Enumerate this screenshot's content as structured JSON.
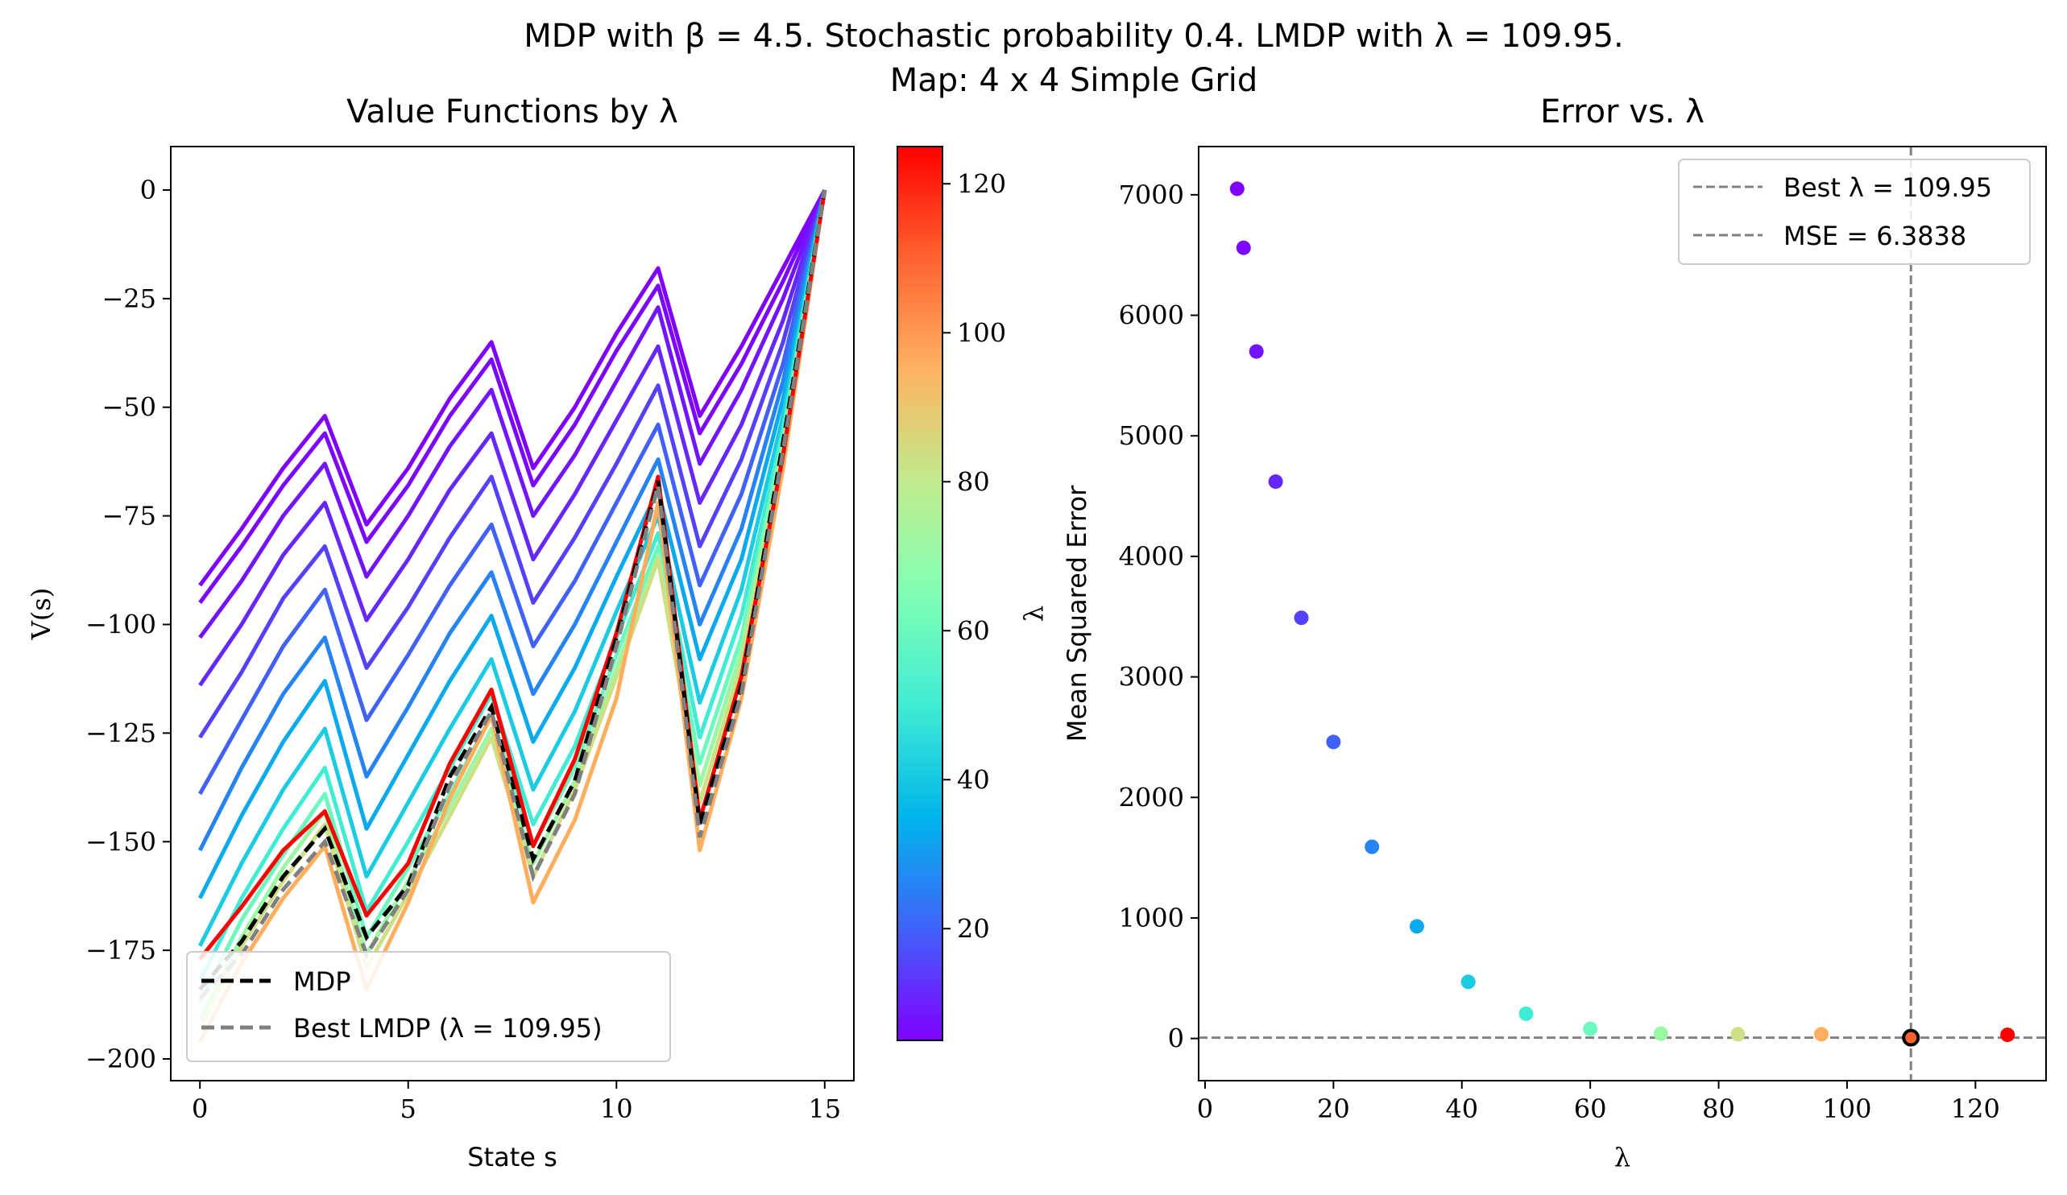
{
  "figure": {
    "suptitle_line1": "MDP with β = 4.5. Stochastic probability 0.4. LMDP with λ = 109.95.",
    "suptitle_line2": "Map: 4 x 4 Simple Grid"
  },
  "chart_data": [
    {
      "type": "line",
      "title": "Value Functions by λ",
      "xlabel": "State s",
      "ylabel": "V(s)",
      "xlim": [
        -0.7,
        15.7
      ],
      "ylim": [
        -205,
        10
      ],
      "xticks": [
        0,
        5,
        10,
        15
      ],
      "yticks": [
        0,
        -25,
        -50,
        -75,
        -100,
        -125,
        -150,
        -175,
        -200
      ],
      "x": [
        0,
        1,
        2,
        3,
        4,
        5,
        6,
        7,
        8,
        9,
        10,
        11,
        12,
        13,
        14,
        15
      ],
      "lambda_curves": [
        {
          "lambda": 5,
          "values": [
            -91,
            -78,
            -64,
            -52,
            -77,
            -64,
            -48,
            -35,
            -64,
            -50,
            -33,
            -18,
            -52,
            -36,
            -18,
            0
          ]
        },
        {
          "lambda": 6,
          "values": [
            -95,
            -82,
            -68,
            -56,
            -81,
            -68,
            -52,
            -39,
            -68,
            -54,
            -37,
            -22,
            -56,
            -40,
            -21,
            0
          ]
        },
        {
          "lambda": 8,
          "values": [
            -103,
            -90,
            -75,
            -63,
            -89,
            -75,
            -59,
            -46,
            -75,
            -61,
            -44,
            -27,
            -63,
            -46,
            -25,
            0
          ]
        },
        {
          "lambda": 11,
          "values": [
            -114,
            -100,
            -84,
            -72,
            -99,
            -85,
            -69,
            -56,
            -85,
            -70,
            -53,
            -36,
            -72,
            -54,
            -30,
            0
          ]
        },
        {
          "lambda": 15,
          "values": [
            -126,
            -111,
            -94,
            -82,
            -110,
            -96,
            -80,
            -66,
            -95,
            -80,
            -63,
            -45,
            -82,
            -62,
            -35,
            0
          ]
        },
        {
          "lambda": 20,
          "values": [
            -139,
            -122,
            -105,
            -92,
            -122,
            -107,
            -91,
            -77,
            -105,
            -90,
            -72,
            -54,
            -91,
            -70,
            -40,
            0
          ]
        },
        {
          "lambda": 26,
          "values": [
            -152,
            -133,
            -116,
            -103,
            -135,
            -119,
            -102,
            -88,
            -116,
            -100,
            -81,
            -62,
            -100,
            -78,
            -44,
            0
          ]
        },
        {
          "lambda": 33,
          "values": [
            -163,
            -144,
            -127,
            -113,
            -147,
            -130,
            -113,
            -98,
            -127,
            -110,
            -89,
            -69,
            -108,
            -85,
            -48,
            0
          ]
        },
        {
          "lambda": 41,
          "values": [
            -174,
            -155,
            -138,
            -124,
            -158,
            -141,
            -124,
            -108,
            -138,
            -120,
            -97,
            -75,
            -118,
            -92,
            -52,
            0
          ]
        },
        {
          "lambda": 50,
          "values": [
            -182,
            -163,
            -147,
            -133,
            -166,
            -150,
            -133,
            -116,
            -146,
            -128,
            -103,
            -79,
            -126,
            -98,
            -55,
            0
          ]
        },
        {
          "lambda": 60,
          "values": [
            -187,
            -168,
            -153,
            -139,
            -172,
            -156,
            -139,
            -121,
            -151,
            -133,
            -107,
            -82,
            -132,
            -103,
            -57,
            0
          ]
        },
        {
          "lambda": 71,
          "values": [
            -191,
            -172,
            -156,
            -143,
            -176,
            -159,
            -142,
            -124,
            -155,
            -136,
            -110,
            -84,
            -137,
            -106,
            -59,
            0
          ]
        },
        {
          "lambda": 83,
          "values": [
            -193,
            -174,
            -159,
            -146,
            -179,
            -162,
            -144,
            -126,
            -158,
            -138,
            -112,
            -85,
            -141,
            -109,
            -60,
            0
          ]
        },
        {
          "lambda": 96,
          "values": [
            -196,
            -178,
            -163,
            -151,
            -184,
            -164,
            -140,
            -121,
            -164,
            -145,
            -117,
            -72,
            -152,
            -117,
            -64,
            0
          ]
        },
        {
          "lambda": 125,
          "values": [
            -177,
            -165,
            -152,
            -143,
            -167,
            -155,
            -132,
            -115,
            -151,
            -131,
            -102,
            -66,
            -145,
            -112,
            -61,
            0
          ]
        }
      ],
      "series": [
        {
          "name": "MDP",
          "values": [
            -184,
            -173,
            -158,
            -147,
            -172,
            -160,
            -135,
            -119,
            -154,
            -136,
            -103,
            -67,
            -146,
            -114,
            -58,
            0
          ]
        },
        {
          "name": "Best LMDP (λ = 109.95)",
          "values": [
            -186,
            -176,
            -161,
            -150,
            -176,
            -161,
            -137,
            -120,
            -158,
            -139,
            -105,
            -68,
            -149,
            -116,
            -60,
            0
          ]
        }
      ],
      "legend": {
        "position": "lower-left",
        "entries": [
          "MDP",
          "Best LMDP (λ = 109.95)"
        ]
      },
      "colorbar": {
        "label": "λ",
        "range": [
          5,
          125
        ],
        "ticks": [
          20,
          40,
          60,
          80,
          100,
          120
        ],
        "colormap": "rainbow"
      }
    },
    {
      "type": "scatter",
      "title": "Error vs. λ",
      "xlabel": "λ",
      "ylabel": "Mean Squared Error",
      "xlim": [
        -1,
        131
      ],
      "ylim": [
        -350,
        7400
      ],
      "xticks": [
        0,
        20,
        40,
        60,
        80,
        100,
        120
      ],
      "yticks": [
        0,
        1000,
        2000,
        3000,
        4000,
        5000,
        6000,
        7000
      ],
      "points": [
        {
          "x": 5,
          "y": 7050
        },
        {
          "x": 6,
          "y": 6560
        },
        {
          "x": 8,
          "y": 5700
        },
        {
          "x": 11,
          "y": 4620
        },
        {
          "x": 15,
          "y": 3490
        },
        {
          "x": 20,
          "y": 2460
        },
        {
          "x": 26,
          "y": 1590
        },
        {
          "x": 33,
          "y": 930
        },
        {
          "x": 41,
          "y": 470
        },
        {
          "x": 50,
          "y": 205
        },
        {
          "x": 60,
          "y": 80
        },
        {
          "x": 71,
          "y": 40
        },
        {
          "x": 83,
          "y": 35
        },
        {
          "x": 96,
          "y": 35
        },
        {
          "x": 109.95,
          "y": 6.3838,
          "highlight": true
        },
        {
          "x": 125,
          "y": 30
        }
      ],
      "best_lambda": 109.95,
      "best_mse": 6.3838,
      "legend": {
        "position": "top-right",
        "entries": [
          "Best λ = 109.95",
          "MSE = 6.3838"
        ]
      }
    }
  ]
}
